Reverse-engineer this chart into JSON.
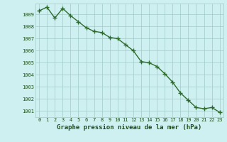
{
  "x": [
    0,
    1,
    2,
    3,
    4,
    5,
    6,
    7,
    8,
    9,
    10,
    11,
    12,
    13,
    14,
    15,
    16,
    17,
    18,
    19,
    20,
    21,
    22,
    23
  ],
  "y": [
    1009.3,
    1009.6,
    1008.7,
    1009.5,
    1008.9,
    1008.4,
    1007.9,
    1007.6,
    1007.5,
    1007.1,
    1007.0,
    1006.5,
    1006.0,
    1005.1,
    1005.0,
    1004.7,
    1004.1,
    1003.4,
    1002.5,
    1001.9,
    1001.3,
    1001.2,
    1001.3,
    1000.9
  ],
  "line_color": "#2d6b2d",
  "marker_color": "#2d6b2d",
  "bg_color": "#cff0f0",
  "grid_color": "#a0c8c8",
  "xlabel": "Graphe pression niveau de la mer (hPa)",
  "xlabel_color": "#1a4d1a",
  "tick_color": "#1a4d1a",
  "ylim": [
    1000.5,
    1009.9
  ],
  "yticks": [
    1001,
    1002,
    1003,
    1004,
    1005,
    1006,
    1007,
    1008,
    1009
  ],
  "xticks": [
    0,
    1,
    2,
    3,
    4,
    5,
    6,
    7,
    8,
    9,
    10,
    11,
    12,
    13,
    14,
    15,
    16,
    17,
    18,
    19,
    20,
    21,
    22,
    23
  ],
  "line_width": 1.0,
  "marker_size": 2.5,
  "tick_fontsize": 5.0,
  "xlabel_fontsize": 6.5
}
